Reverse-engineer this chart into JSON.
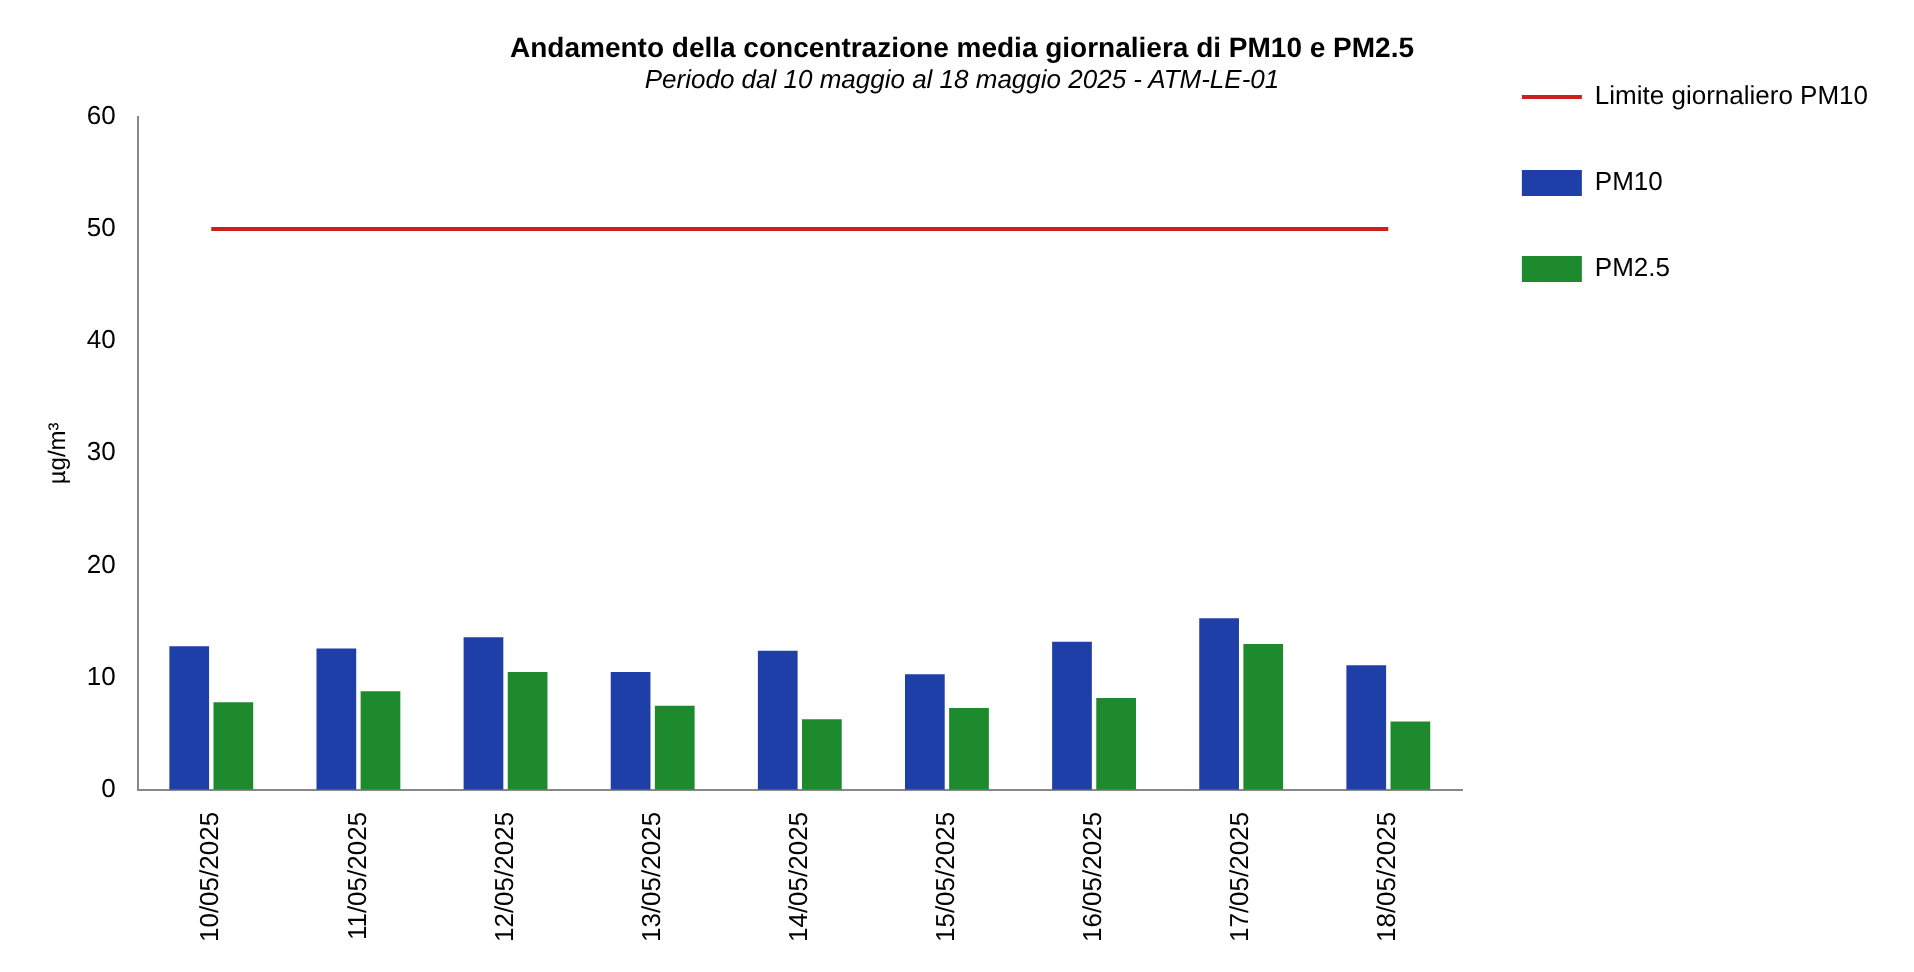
{
  "chart_data": {
    "type": "bar",
    "title": "Andamento della concentrazione media giornaliera di PM10 e PM2.5",
    "subtitle": "Periodo dal 10 maggio al 18 maggio 2025 - ATM-LE-01",
    "ylabel": "µg/m³",
    "categories": [
      "10/05/2025",
      "11/05/2025",
      "12/05/2025",
      "13/05/2025",
      "14/05/2025",
      "15/05/2025",
      "16/05/2025",
      "17/05/2025",
      "18/05/2025"
    ],
    "series": [
      {
        "name": "PM10",
        "color": "#1f3fa8",
        "values": [
          12.8,
          12.6,
          13.6,
          10.5,
          12.4,
          10.3,
          13.2,
          15.3,
          11.1
        ]
      },
      {
        "name": "PM2.5",
        "color": "#1e8a2e",
        "values": [
          7.8,
          8.8,
          10.5,
          7.5,
          6.3,
          7.3,
          8.2,
          13.0,
          6.1
        ]
      },
      {
        "name": "Limite giornaliero PM10",
        "type": "line",
        "color": "#cc1f1f",
        "values": [
          50,
          50,
          50,
          50,
          50,
          50,
          50,
          50,
          50
        ]
      }
    ],
    "ylim": [
      0,
      60
    ],
    "yticks": [
      0,
      10,
      20,
      30,
      40,
      50,
      60
    ],
    "grid": false,
    "legend": "right",
    "marker": "none"
  }
}
